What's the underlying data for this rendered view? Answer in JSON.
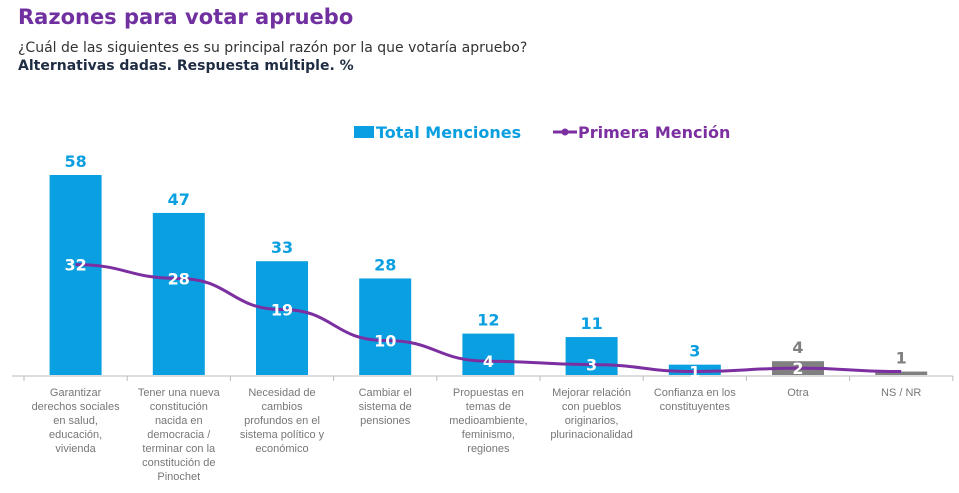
{
  "header": {
    "title": "Razones para votar apruebo",
    "subtitle": "¿Cuál de las siguientes es su principal razón por la que votaría apruebo?",
    "note": "Alternativas dadas. Respuesta múltiple. %"
  },
  "chart_data": {
    "type": "bar",
    "title": "Razones para votar apruebo",
    "categories": [
      "Garantizar\nderechos sociales\nen salud,\neducación,\nvivienda",
      "Tener una nueva\nconstitución\nnacida en\ndemocracia /\nterminar con la\nconstitución de\nPinochet",
      "Necesidad de\ncambios\nprofundos en el\nsistema político y\neconómico",
      "Cambiar el\nsistema de\npensiones",
      "Propuestas en\ntemas de\nmedioambiente,\nfeminismo,\nregiones",
      "Mejorar relación\ncon pueblos\noriginarios,\nplurinacionalidad",
      "Confianza en los\nconstituyentes",
      "Otra",
      "NS / NR"
    ],
    "series": [
      {
        "name": "Total Menciones",
        "type": "bar",
        "values": [
          58,
          47,
          33,
          28,
          12,
          11,
          3,
          4,
          1
        ],
        "color": "#0a9fe0"
      },
      {
        "name": "Primera Mención",
        "type": "line",
        "values": [
          32,
          28,
          19,
          10,
          4,
          3,
          1,
          2,
          1
        ],
        "color": "#7b2fa0"
      }
    ],
    "bar_colors": [
      "#0a9fe0",
      "#0a9fe0",
      "#0a9fe0",
      "#0a9fe0",
      "#0a9fe0",
      "#0a9fe0",
      "#0a9fe0",
      "#808080",
      "#808080"
    ],
    "ylim": [
      0,
      58
    ],
    "grid": false,
    "legend": "top-center"
  }
}
